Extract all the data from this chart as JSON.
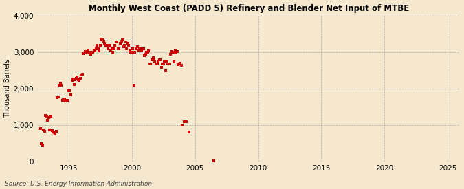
{
  "title": "Monthly West Coast (PADD 5) Refinery and Blender Net Input of MTBE",
  "ylabel": "Thousand Barrels",
  "source": "Source: U.S. Energy Information Administration",
  "background_color": "#f5e8ce",
  "plot_bg_color": "#f5e8ce",
  "marker_color": "#cc0000",
  "xlim": [
    1992.5,
    2026
  ],
  "ylim": [
    0,
    4000
  ],
  "yticks": [
    0,
    1000,
    2000,
    3000,
    4000
  ],
  "xticks": [
    1995,
    2000,
    2005,
    2010,
    2015,
    2020,
    2025
  ],
  "x": [
    1992.75,
    1992.83,
    1992.92,
    1993.0,
    1993.08,
    1993.17,
    1993.25,
    1993.33,
    1993.42,
    1993.5,
    1993.58,
    1993.67,
    1993.75,
    1993.83,
    1993.92,
    1994.0,
    1994.08,
    1994.17,
    1994.25,
    1994.33,
    1994.42,
    1994.5,
    1994.58,
    1994.67,
    1994.75,
    1994.83,
    1994.92,
    1995.0,
    1995.08,
    1995.17,
    1995.25,
    1995.33,
    1995.42,
    1995.5,
    1995.58,
    1995.67,
    1995.75,
    1995.83,
    1995.92,
    1996.0,
    1996.08,
    1996.17,
    1996.25,
    1996.33,
    1996.42,
    1996.5,
    1996.58,
    1996.67,
    1996.75,
    1996.83,
    1996.92,
    1997.0,
    1997.08,
    1997.17,
    1997.25,
    1997.33,
    1997.42,
    1997.5,
    1997.58,
    1997.67,
    1997.75,
    1997.83,
    1997.92,
    1998.0,
    1998.08,
    1998.17,
    1998.25,
    1998.33,
    1998.42,
    1998.5,
    1998.58,
    1998.67,
    1998.75,
    1998.83,
    1998.92,
    1999.0,
    1999.08,
    1999.17,
    1999.25,
    1999.33,
    1999.42,
    1999.5,
    1999.58,
    1999.67,
    1999.75,
    1999.83,
    1999.92,
    2000.0,
    2000.08,
    2000.17,
    2000.25,
    2000.33,
    2000.42,
    2000.5,
    2000.58,
    2000.67,
    2000.75,
    2000.83,
    2000.92,
    2001.0,
    2001.08,
    2001.17,
    2001.25,
    2001.33,
    2001.42,
    2001.5,
    2001.58,
    2001.67,
    2001.75,
    2001.83,
    2001.92,
    2002.0,
    2002.08,
    2002.17,
    2002.25,
    2002.33,
    2002.42,
    2002.5,
    2002.58,
    2002.67,
    2002.75,
    2002.83,
    2002.92,
    2003.0,
    2003.08,
    2003.17,
    2003.25,
    2003.33,
    2003.42,
    2003.5,
    2003.58,
    2003.67,
    2003.75,
    2003.83,
    2003.92,
    2004.0,
    2004.17,
    2004.33,
    2004.5,
    2006.5
  ],
  "y": [
    900,
    490,
    440,
    870,
    830,
    1260,
    1230,
    1130,
    1200,
    870,
    1230,
    860,
    820,
    790,
    760,
    840,
    1750,
    1780,
    2100,
    2150,
    2100,
    1680,
    1700,
    1720,
    1660,
    1680,
    1670,
    1950,
    1940,
    1820,
    2200,
    2270,
    2120,
    2250,
    2280,
    2310,
    2240,
    2220,
    2280,
    2370,
    2390,
    2950,
    2980,
    3020,
    2990,
    3030,
    2970,
    2990,
    2940,
    2980,
    2990,
    3040,
    3040,
    3080,
    3190,
    3080,
    3040,
    3180,
    3350,
    3340,
    3290,
    3240,
    3180,
    3190,
    3090,
    3190,
    3190,
    3040,
    3080,
    2990,
    3080,
    3190,
    3280,
    3280,
    3080,
    3080,
    3240,
    3290,
    3340,
    3140,
    3180,
    3280,
    3080,
    3240,
    3180,
    3040,
    2990,
    2990,
    3080,
    2090,
    2990,
    3080,
    3140,
    3040,
    3080,
    3080,
    3030,
    3080,
    3080,
    2900,
    2940,
    2990,
    2990,
    3040,
    2680,
    2680,
    2790,
    2840,
    2790,
    2730,
    2680,
    2680,
    2730,
    2790,
    2790,
    2590,
    2680,
    2680,
    2730,
    2490,
    2730,
    2680,
    2680,
    2680,
    2940,
    3010,
    2990,
    2730,
    3040,
    2990,
    3010,
    2660,
    2680,
    2700,
    2640,
    1010,
    1090,
    1100,
    810,
    30
  ]
}
